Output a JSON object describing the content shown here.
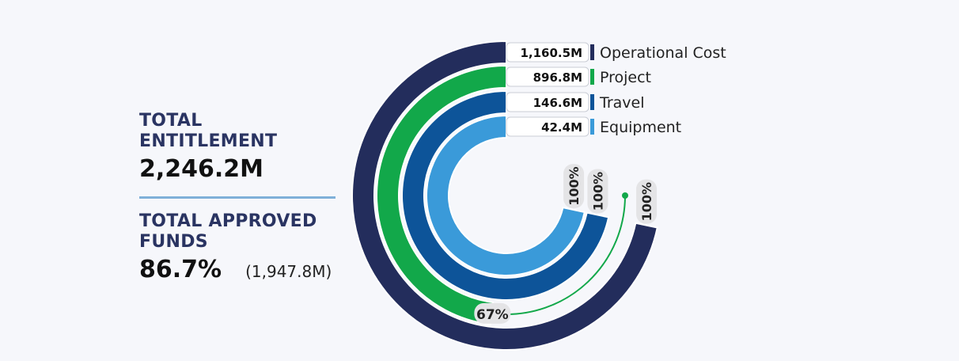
{
  "summary": {
    "entitlement_label": "TOTAL ENTITLEMENT",
    "entitlement_value": "2,246.2M",
    "approved_label": "TOTAL APPROVED FUNDS",
    "approved_percent": "86.7%",
    "approved_amount": "(1,947.8M)"
  },
  "chart_data": {
    "type": "radial-bar",
    "max_percent": 100,
    "series": [
      {
        "name": "Operational Cost",
        "value_label": "1,160.5M",
        "percent": 100,
        "percent_label": "100%",
        "color": "#232d5c"
      },
      {
        "name": "Project",
        "value_label": "896.8M",
        "percent": 67,
        "percent_label": "67%",
        "color": "#12a84a"
      },
      {
        "name": "Travel",
        "value_label": "146.6M",
        "percent": 100,
        "percent_label": "100%",
        "color": "#0d5499"
      },
      {
        "name": "Equipment",
        "value_label": "42.4M",
        "percent": 100,
        "percent_label": "100%",
        "color": "#3a9ad9"
      }
    ]
  }
}
